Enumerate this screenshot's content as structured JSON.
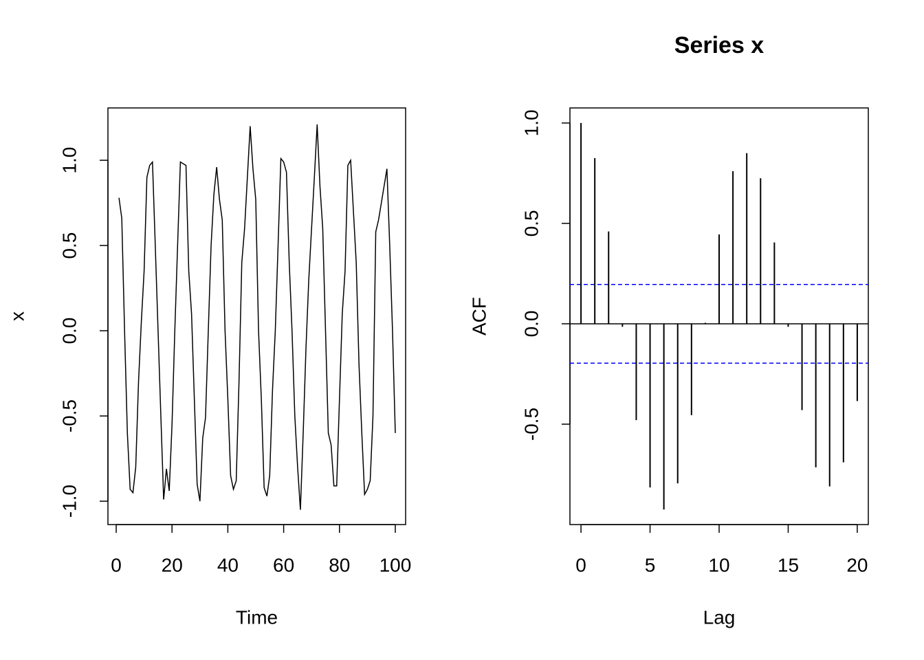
{
  "chart_data": [
    {
      "type": "line",
      "xlabel": "Time",
      "ylabel": "x",
      "color": "#000000",
      "x": [
        1,
        2,
        3,
        4,
        5,
        6,
        7,
        8,
        9,
        10,
        11,
        12,
        13,
        14,
        15,
        16,
        17,
        18,
        19,
        20,
        21,
        22,
        23,
        24,
        25,
        26,
        27,
        28,
        29,
        30,
        31,
        32,
        33,
        34,
        35,
        36,
        37,
        38,
        39,
        40,
        41,
        42,
        43,
        44,
        45,
        46,
        47,
        48,
        49,
        50,
        51,
        52,
        53,
        54,
        55,
        56,
        57,
        58,
        59,
        60,
        61,
        62,
        63,
        64,
        65,
        66,
        67,
        68,
        69,
        70,
        71,
        72,
        73,
        74,
        75,
        76,
        77,
        78,
        79,
        80,
        81,
        82,
        83,
        84,
        85,
        86,
        87,
        88,
        89,
        90,
        91,
        92,
        93,
        94,
        95,
        96,
        97,
        98,
        99,
        100
      ],
      "values": [
        0.78,
        0.66,
        0.0,
        -0.6,
        -0.93,
        -0.95,
        -0.8,
        -0.3,
        0.05,
        0.35,
        0.9,
        0.97,
        0.99,
        0.5,
        0.0,
        -0.5,
        -0.99,
        -0.81,
        -0.94,
        -0.55,
        0.0,
        0.5,
        0.99,
        0.98,
        0.97,
        0.35,
        0.1,
        -0.4,
        -0.9,
        -1.0,
        -0.63,
        -0.51,
        0.0,
        0.5,
        0.8,
        0.96,
        0.77,
        0.65,
        0.0,
        -0.4,
        -0.85,
        -0.93,
        -0.88,
        -0.3,
        0.4,
        0.6,
        0.9,
        1.2,
        0.95,
        0.77,
        0.0,
        -0.4,
        -0.92,
        -0.97,
        -0.85,
        -0.35,
        0.0,
        0.5,
        1.01,
        0.99,
        0.93,
        0.4,
        0.0,
        -0.5,
        -0.8,
        -1.05,
        -0.6,
        -0.1,
        0.3,
        0.6,
        0.9,
        1.21,
        0.85,
        0.6,
        0.0,
        -0.6,
        -0.67,
        -0.91,
        -0.91,
        -0.4,
        0.1,
        0.35,
        0.97,
        1.0,
        0.7,
        0.4,
        -0.2,
        -0.6,
        -0.96,
        -0.93,
        -0.88,
        -0.5,
        0.58,
        0.65,
        0.75,
        0.85,
        0.95,
        0.5,
        0.0,
        -0.6
      ],
      "xlim": [
        -2.96,
        103.7
      ],
      "ylim": [
        -1.137,
        1.307
      ],
      "xticks": [
        0,
        20,
        40,
        60,
        80,
        100
      ],
      "yticks": [
        {
          "value": -1,
          "label": "-1.0"
        },
        -0.5,
        {
          "value": 0,
          "label": "0.0"
        },
        0.5,
        {
          "value": 1,
          "label": "1.0"
        }
      ]
    },
    {
      "type": "stem",
      "title": "Series  x",
      "xlabel": "Lag",
      "ylabel": "ACF",
      "color": "#000000",
      "x": [
        0,
        1,
        2,
        3,
        4,
        5,
        6,
        7,
        8,
        9,
        10,
        11,
        12,
        13,
        14,
        15,
        16,
        17,
        18,
        19,
        20
      ],
      "values": [
        1.0,
        0.825,
        0.46,
        -0.015,
        -0.48,
        -0.815,
        -0.925,
        -0.795,
        -0.455,
        0.005,
        0.445,
        0.76,
        0.85,
        0.725,
        0.405,
        -0.015,
        -0.43,
        -0.715,
        -0.81,
        -0.69,
        -0.385
      ],
      "ci": [
        -0.196,
        0.196
      ],
      "ci_color": "#0000ff",
      "xlim": [
        -0.8,
        20.8
      ],
      "ylim": [
        -1.0,
        1.075
      ],
      "xticks": [
        0,
        5,
        10,
        15,
        20
      ],
      "yticks": [
        -0.5,
        {
          "value": 0,
          "label": "0.0"
        },
        0.5,
        {
          "value": 1,
          "label": "1.0"
        }
      ]
    }
  ]
}
